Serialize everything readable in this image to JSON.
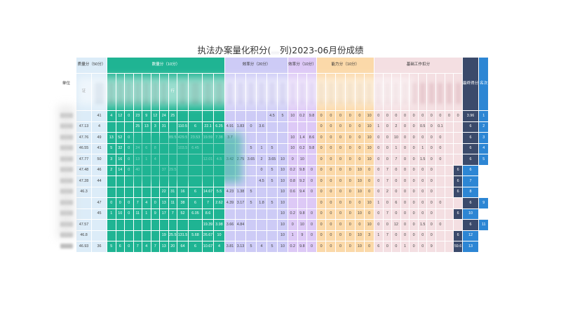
{
  "title": {
    "prefix": "执法办案量化积分(",
    "masked": "…",
    "suffix": "列)2023-06月份成绩"
  },
  "header": {
    "unit": "单位",
    "groups": [
      {
        "key": "qual",
        "label": "质量分（50分）",
        "span": 2
      },
      {
        "key": "num",
        "label": "数量分（10分）",
        "span": 12
      },
      {
        "key": "eff",
        "label": "效率分（20分）",
        "span": 6
      },
      {
        "key": "eff10",
        "label": "效率分（10分）",
        "span": 3
      },
      {
        "key": "cap",
        "label": "能力分（10分）",
        "span": 6
      },
      {
        "key": "base",
        "label": "基础工作扣分",
        "span": 10
      }
    ],
    "total": "最终得分",
    "rank": "名次",
    "fragments": {
      "qual": "证",
      "num": "行"
    }
  },
  "rows": [
    {
      "unit": "",
      "v": [
        "",
        "41",
        "4",
        "12",
        "0",
        "23",
        "9",
        "12",
        "24",
        "25",
        "",
        "",
        "",
        "",
        "",
        "",
        "",
        "",
        "4.5",
        "5",
        "10",
        "0.2",
        "9.8",
        "0",
        "0",
        "0",
        "0",
        "0",
        "10",
        "0",
        "0",
        "0",
        "0",
        "0",
        "0",
        "0",
        "0",
        "0",
        "0"
      ],
      "total": "3.96",
      "rank": "1"
    },
    {
      "unit": "",
      "v": [
        "47.13",
        "4",
        "",
        "",
        "",
        "25",
        "13",
        "3",
        "31",
        "",
        "110.5",
        "6",
        "22.1",
        "6.25",
        "4.91",
        "1.83",
        "0",
        "3.6",
        "",
        "",
        "",
        "",
        "",
        "0",
        "0",
        "0",
        "0",
        "0",
        "10",
        "1",
        "0",
        "2",
        "0",
        "0",
        "0.5",
        "0",
        "0.1",
        "",
        ""
      ],
      "total": "6",
      "rank": "2"
    },
    {
      "unit": "",
      "v": [
        "47.76",
        "49",
        "13",
        "52",
        "0",
        "",
        "",
        "",
        "",
        "89.5",
        "429.5",
        "23.53",
        "19.59",
        "7.38",
        "3.7",
        "",
        "",
        "",
        "",
        "",
        "10",
        "1.4",
        "8.6",
        "0",
        "0",
        "0",
        "0",
        "0",
        "10",
        "0",
        "0",
        "10",
        "0",
        "0",
        "0",
        "0",
        "0",
        "",
        ""
      ],
      "total": "6",
      "rank": "3"
    },
    {
      "unit": "",
      "v": [
        "46.55",
        "41",
        "5",
        "32",
        "0",
        "24",
        "6",
        "8",
        "",
        "",
        "103.5",
        "6.45",
        "",
        "",
        "",
        "",
        "5",
        "1",
        "5",
        "",
        "10",
        "0.2",
        "9.8",
        "0",
        "0",
        "0",
        "0",
        "0",
        "10",
        "0",
        "0",
        "1",
        "0",
        "0",
        "1",
        "0",
        "0",
        "",
        ""
      ],
      "total": "6",
      "rank": "4"
    },
    {
      "unit": "",
      "v": [
        "47.77",
        "50",
        "3",
        "16",
        "0",
        "13",
        "1",
        "4",
        "",
        "",
        "",
        "",
        "12.01",
        "4.5",
        "3.42",
        "2.75",
        "3.65",
        "2",
        "3.65",
        "10",
        "0",
        "10",
        "",
        "0",
        "0",
        "0",
        "0",
        "0",
        "10",
        "0",
        "0",
        "7",
        "0",
        "0",
        "1.5",
        "0",
        "0",
        "",
        ""
      ],
      "total": "6",
      "rank": "5"
    },
    {
      "unit": "",
      "v": [
        "47.48",
        "46",
        "2",
        "14",
        "0",
        "40",
        "",
        "",
        "37",
        "29.5",
        "",
        "",
        "",
        "",
        "",
        "",
        "",
        "0",
        "5",
        "10",
        "0.2",
        "9.8",
        "0",
        "0",
        "0",
        "0",
        "0",
        "10",
        "0",
        "0",
        "7",
        "0",
        "0",
        "0",
        "0",
        "0",
        "",
        ""
      ],
      "total": "6",
      "rank": "6"
    },
    {
      "unit": "",
      "v": [
        "47.28",
        "44",
        "",
        "",
        "",
        "",
        "",
        "",
        "",
        "",
        "",
        "",
        "",
        "",
        "",
        "",
        "",
        "4.5",
        "5",
        "10",
        "0.8",
        "9.2",
        "0",
        "0",
        "0",
        "0",
        "0",
        "10",
        "0",
        "0",
        "7",
        "0",
        "0",
        "0",
        "0",
        "0",
        "",
        ""
      ],
      "total": "6",
      "rank": "7"
    },
    {
      "unit": "",
      "v": [
        "46.3",
        "",
        "",
        "",
        "",
        "",
        "",
        "",
        "22",
        "31",
        "16",
        "6",
        "14.67",
        "5.5",
        "4.23",
        "1.38",
        "5",
        "",
        "",
        "10",
        "0.6",
        "9.4",
        "0",
        "0",
        "0",
        "0",
        "0",
        "10",
        "0",
        "0",
        "2",
        "0",
        "0",
        "0",
        "0",
        "0",
        "",
        ""
      ],
      "total": "6",
      "rank": "8"
    },
    {
      "unit": "",
      "v": [
        "",
        "47",
        "0",
        "0",
        "0",
        "7",
        "4",
        "0",
        "13",
        "11",
        "38",
        "6",
        "7",
        "2.62",
        "4.39",
        "3.17",
        "5",
        "1.8",
        "5",
        "10",
        "",
        "",
        "",
        "0",
        "0",
        "0",
        "0",
        "0",
        "10",
        "1",
        "0",
        "6",
        "0",
        "0",
        "0",
        "0",
        "0",
        "",
        ""
      ],
      "total": "6",
      "rank": "9"
    },
    {
      "unit": "",
      "v": [
        "",
        "45",
        "1",
        "10",
        "0",
        "11",
        "1",
        "9",
        "17",
        "7",
        "52",
        "6.05",
        "8.6",
        "",
        "",
        "",
        "",
        "",
        "",
        "10",
        "0.2",
        "9.8",
        "0",
        "0",
        "0",
        "0",
        "0",
        "10",
        "0",
        "0",
        "7",
        "0",
        "0",
        "0",
        "0",
        "0",
        "",
        ""
      ],
      "total": "6",
      "rank": "10"
    },
    {
      "unit": "",
      "v": [
        "47.57",
        "",
        "",
        "",
        "",
        "",
        "",
        "",
        "",
        "",
        "",
        "",
        "19.39",
        "3.98",
        "3.66",
        "4.84",
        "",
        "",
        "",
        "10",
        "0",
        "10",
        "0",
        "0",
        "0",
        "0",
        "0",
        "0",
        "10",
        "0",
        "0",
        "12",
        "0",
        "0",
        "1.5",
        "0",
        "0",
        "",
        ""
      ],
      "total": "6",
      "rank": "11"
    },
    {
      "unit": "",
      "v": [
        "46.8",
        "",
        "",
        "",
        "",
        "",
        "",
        "",
        "19",
        "25.5",
        "131.5",
        "5.68",
        "26.67",
        "10",
        "",
        "",
        "",
        "",
        "",
        "10",
        "1",
        "9",
        "0",
        "0",
        "0",
        "0",
        "0",
        "10",
        "3",
        "1",
        "7",
        "0",
        "0",
        "0",
        "0",
        "0",
        "",
        ""
      ],
      "total": "6",
      "rank": "12"
    },
    {
      "unit": "",
      "v": [
        "46.93",
        "36",
        "5",
        "6",
        "0",
        "7",
        "4",
        "7",
        "13",
        "20",
        "64",
        "6",
        "10.67",
        "4",
        "3.81",
        "3.13",
        "5",
        "4",
        "5",
        "10",
        "0.2",
        "9.8",
        "0",
        "0",
        "0",
        "0",
        "0",
        "10",
        "0",
        "6",
        "0",
        "0",
        "1",
        "0",
        "0",
        "9",
        "",
        ""
      ],
      "total": "59.6",
      "rank": "13"
    }
  ]
}
